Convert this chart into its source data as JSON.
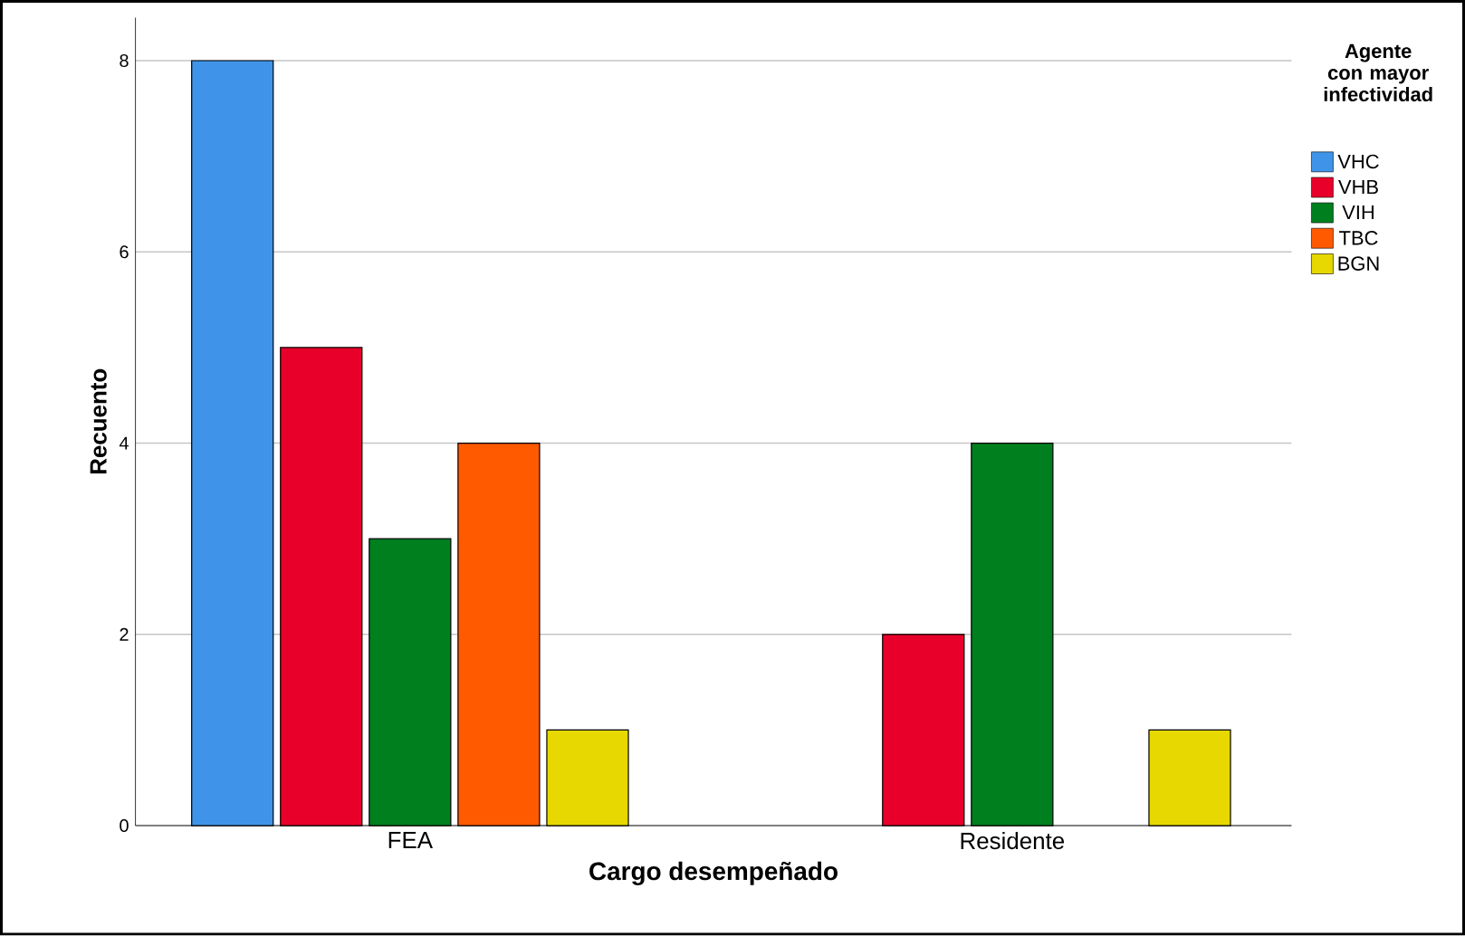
{
  "chart_data": {
    "type": "bar",
    "xlabel": "Cargo desempeñado",
    "ylabel": "Recuento",
    "legend_title": "Agente con mayor infectividad",
    "categories": [
      "FEA",
      "Residente"
    ],
    "series": [
      {
        "name": "VHC",
        "color": "#3f94e9",
        "values": [
          8,
          null
        ]
      },
      {
        "name": "VHB",
        "color": "#e8002a",
        "values": [
          5,
          2
        ]
      },
      {
        "name": "VIH",
        "color": "#007f1e",
        "values": [
          3,
          4
        ]
      },
      {
        "name": "TBC",
        "color": "#ff5a00",
        "values": [
          4,
          null
        ]
      },
      {
        "name": "BGN",
        "color": "#e6d800",
        "values": [
          1,
          1
        ]
      }
    ],
    "ylim": [
      0,
      8.45
    ],
    "yticks": [
      0,
      2,
      4,
      6,
      8
    ],
    "grid": "y",
    "legend": "top right"
  }
}
